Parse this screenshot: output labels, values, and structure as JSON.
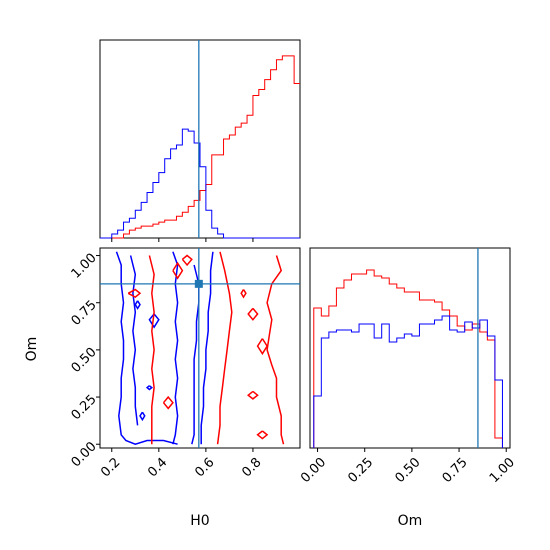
{
  "colors": {
    "series_a": "#ff0000",
    "series_b": "#0000ff",
    "truth": "#1f77b4"
  },
  "chart_data": [
    {
      "panel": "H0 marginal",
      "type": "histogram",
      "xlim": [
        0.15,
        1.0
      ],
      "truth": 0.57,
      "bins": [
        0.15,
        0.175,
        0.2,
        0.225,
        0.25,
        0.275,
        0.3,
        0.325,
        0.35,
        0.375,
        0.4,
        0.425,
        0.45,
        0.475,
        0.5,
        0.525,
        0.55,
        0.575,
        0.6,
        0.625,
        0.65,
        0.675,
        0.7,
        0.725,
        0.75,
        0.775,
        0.8,
        0.825,
        0.85,
        0.875,
        0.9,
        0.925,
        0.95,
        0.975,
        1.0
      ],
      "series": [
        {
          "color": "red",
          "values": [
            0,
            0,
            0,
            0,
            0.02,
            0.04,
            0.05,
            0.06,
            0.06,
            0.07,
            0.08,
            0.09,
            0.09,
            0.11,
            0.13,
            0.16,
            0.19,
            0.24,
            0.27,
            0.42,
            0.42,
            0.5,
            0.52,
            0.56,
            0.58,
            0.62,
            0.72,
            0.75,
            0.8,
            0.85,
            0.9,
            0.92,
            0.92,
            0.78
          ]
        },
        {
          "color": "blue",
          "values": [
            0,
            0,
            0.02,
            0.04,
            0.08,
            0.1,
            0.14,
            0.18,
            0.23,
            0.28,
            0.33,
            0.4,
            0.45,
            0.47,
            0.55,
            0.54,
            0.48,
            0.36,
            0.14,
            0.05,
            0.02,
            0,
            0,
            0,
            0,
            0,
            0,
            0,
            0,
            0,
            0,
            0,
            0,
            0
          ]
        }
      ]
    },
    {
      "panel": "H0 vs Om",
      "type": "contour",
      "xlabel": "H0",
      "ylabel": "Om",
      "xlim": [
        0.15,
        1.0
      ],
      "ylim": [
        -0.02,
        1.04
      ],
      "xticks": [
        "0.2",
        "0.4",
        "0.6",
        "0.8"
      ],
      "yticks": [
        "0.00",
        "0.25",
        "0.50",
        "0.75",
        "1.00"
      ],
      "truth": {
        "x": 0.57,
        "y": 0.85
      },
      "series": [
        {
          "color": "blue",
          "contours": [
            [
              [
                0.22,
                1.02
              ],
              [
                0.24,
                0.95
              ],
              [
                0.24,
                0.85
              ],
              [
                0.25,
                0.75
              ],
              [
                0.24,
                0.65
              ],
              [
                0.25,
                0.55
              ],
              [
                0.25,
                0.45
              ],
              [
                0.24,
                0.35
              ],
              [
                0.24,
                0.25
              ],
              [
                0.23,
                0.15
              ],
              [
                0.24,
                0.05
              ],
              [
                0.26,
                0.02
              ],
              [
                0.3,
                0.0
              ],
              [
                0.35,
                0.02
              ],
              [
                0.42,
                0.02
              ],
              [
                0.48,
                0.0
              ]
            ],
            [
              [
                0.28,
                1.0
              ],
              [
                0.3,
                0.9
              ],
              [
                0.29,
                0.8
              ],
              [
                0.3,
                0.7
              ],
              [
                0.29,
                0.6
              ],
              [
                0.3,
                0.5
              ],
              [
                0.29,
                0.4
              ],
              [
                0.3,
                0.3
              ],
              [
                0.3,
                0.2
              ],
              [
                0.31,
                0.1
              ]
            ],
            [
              [
                0.46,
                1.02
              ],
              [
                0.48,
                0.95
              ],
              [
                0.47,
                0.85
              ],
              [
                0.48,
                0.75
              ],
              [
                0.47,
                0.65
              ],
              [
                0.48,
                0.55
              ],
              [
                0.47,
                0.45
              ],
              [
                0.48,
                0.35
              ],
              [
                0.47,
                0.25
              ],
              [
                0.48,
                0.15
              ],
              [
                0.47,
                0.05
              ],
              [
                0.46,
                0.0
              ]
            ],
            [
              [
                0.55,
                0.95
              ],
              [
                0.57,
                0.85
              ],
              [
                0.57,
                0.75
              ],
              [
                0.56,
                0.65
              ],
              [
                0.56,
                0.55
              ],
              [
                0.55,
                0.45
              ],
              [
                0.55,
                0.35
              ],
              [
                0.55,
                0.25
              ],
              [
                0.55,
                0.15
              ],
              [
                0.55,
                0.05
              ],
              [
                0.54,
                0.0
              ]
            ],
            [
              [
                0.63,
                1.02
              ],
              [
                0.62,
                0.92
              ],
              [
                0.62,
                0.8
              ],
              [
                0.61,
                0.7
              ],
              [
                0.61,
                0.6
              ],
              [
                0.6,
                0.5
              ],
              [
                0.6,
                0.4
              ],
              [
                0.59,
                0.3
              ],
              [
                0.59,
                0.2
              ],
              [
                0.58,
                0.1
              ],
              [
                0.58,
                0.0
              ]
            ],
            [
              [
                0.38,
                0.69
              ],
              [
                0.4,
                0.66
              ],
              [
                0.38,
                0.62
              ],
              [
                0.36,
                0.66
              ],
              [
                0.38,
                0.69
              ]
            ],
            [
              [
                0.31,
                0.76
              ],
              [
                0.32,
                0.74
              ],
              [
                0.31,
                0.72
              ],
              [
                0.3,
                0.74
              ],
              [
                0.31,
                0.76
              ]
            ],
            [
              [
                0.36,
                0.31
              ],
              [
                0.37,
                0.3
              ],
              [
                0.36,
                0.29
              ],
              [
                0.35,
                0.3
              ],
              [
                0.36,
                0.31
              ]
            ],
            [
              [
                0.33,
                0.17
              ],
              [
                0.34,
                0.15
              ],
              [
                0.33,
                0.13
              ],
              [
                0.32,
                0.15
              ],
              [
                0.33,
                0.17
              ]
            ]
          ]
        },
        {
          "color": "red",
          "contours": [
            [
              [
                0.27,
                0.8
              ],
              [
                0.3,
                0.78
              ],
              [
                0.32,
                0.8
              ],
              [
                0.3,
                0.82
              ],
              [
                0.27,
                0.8
              ]
            ],
            [
              [
                0.36,
                1.0
              ],
              [
                0.38,
                0.9
              ],
              [
                0.37,
                0.8
              ],
              [
                0.38,
                0.7
              ],
              [
                0.37,
                0.6
              ],
              [
                0.38,
                0.5
              ],
              [
                0.37,
                0.4
              ],
              [
                0.38,
                0.3
              ],
              [
                0.37,
                0.2
              ],
              [
                0.37,
                0.1
              ],
              [
                0.37,
                0.0
              ]
            ],
            [
              [
                0.46,
                0.92
              ],
              [
                0.48,
                0.88
              ],
              [
                0.5,
                0.92
              ],
              [
                0.48,
                0.96
              ],
              [
                0.46,
                0.92
              ]
            ],
            [
              [
                0.5,
                0.98
              ],
              [
                0.52,
                0.95
              ],
              [
                0.54,
                0.98
              ],
              [
                0.52,
                1.0
              ],
              [
                0.5,
                0.98
              ]
            ],
            [
              [
                0.42,
                0.22
              ],
              [
                0.44,
                0.19
              ],
              [
                0.46,
                0.22
              ],
              [
                0.44,
                0.25
              ],
              [
                0.42,
                0.22
              ]
            ],
            [
              [
                0.66,
                1.02
              ],
              [
                0.68,
                0.92
              ],
              [
                0.7,
                0.8
              ],
              [
                0.71,
                0.7
              ],
              [
                0.7,
                0.6
              ],
              [
                0.69,
                0.5
              ],
              [
                0.68,
                0.4
              ],
              [
                0.67,
                0.3
              ],
              [
                0.66,
                0.2
              ],
              [
                0.66,
                0.1
              ],
              [
                0.65,
                0.0
              ]
            ],
            [
              [
                0.9,
                1.0
              ],
              [
                0.92,
                0.92
              ],
              [
                0.88,
                0.85
              ],
              [
                0.86,
                0.75
              ],
              [
                0.88,
                0.66
              ],
              [
                0.87,
                0.58
              ],
              [
                0.86,
                0.5
              ],
              [
                0.88,
                0.42
              ],
              [
                0.9,
                0.35
              ],
              [
                0.9,
                0.25
              ],
              [
                0.92,
                0.15
              ],
              [
                0.92,
                0.05
              ],
              [
                0.93,
                0.0
              ]
            ],
            [
              [
                0.76,
                0.82
              ],
              [
                0.77,
                0.8
              ],
              [
                0.76,
                0.78
              ],
              [
                0.75,
                0.8
              ],
              [
                0.76,
                0.82
              ]
            ],
            [
              [
                0.8,
                0.72
              ],
              [
                0.82,
                0.69
              ],
              [
                0.8,
                0.66
              ],
              [
                0.78,
                0.69
              ],
              [
                0.8,
                0.72
              ]
            ],
            [
              [
                0.84,
                0.56
              ],
              [
                0.86,
                0.52
              ],
              [
                0.84,
                0.48
              ],
              [
                0.82,
                0.52
              ],
              [
                0.84,
                0.56
              ]
            ],
            [
              [
                0.8,
                0.28
              ],
              [
                0.82,
                0.26
              ],
              [
                0.8,
                0.24
              ],
              [
                0.78,
                0.26
              ],
              [
                0.8,
                0.28
              ]
            ],
            [
              [
                0.84,
                0.07
              ],
              [
                0.86,
                0.05
              ],
              [
                0.84,
                0.03
              ],
              [
                0.82,
                0.05
              ],
              [
                0.84,
                0.07
              ]
            ]
          ]
        }
      ]
    },
    {
      "panel": "Om marginal",
      "type": "histogram",
      "xlabel": "Om",
      "xlim": [
        -0.04,
        1.02
      ],
      "xticks": [
        "0.00",
        "0.25",
        "0.50",
        "0.75",
        "1.00"
      ],
      "truth": 0.85,
      "bins": [
        -0.02,
        0.02,
        0.06,
        0.1,
        0.14,
        0.18,
        0.22,
        0.26,
        0.3,
        0.34,
        0.38,
        0.42,
        0.46,
        0.5,
        0.54,
        0.58,
        0.62,
        0.66,
        0.7,
        0.74,
        0.78,
        0.82,
        0.86,
        0.9,
        0.94,
        0.98
      ],
      "series": [
        {
          "color": "red",
          "values": [
            0.7,
            0.66,
            0.71,
            0.8,
            0.84,
            0.87,
            0.87,
            0.89,
            0.86,
            0.85,
            0.82,
            0.8,
            0.78,
            0.78,
            0.74,
            0.74,
            0.73,
            0.69,
            0.66,
            0.61,
            0.59,
            0.62,
            0.58,
            0.54,
            0.05
          ]
        },
        {
          "color": "blue",
          "values": [
            0.26,
            0.55,
            0.58,
            0.59,
            0.59,
            0.58,
            0.62,
            0.62,
            0.55,
            0.62,
            0.53,
            0.55,
            0.57,
            0.56,
            0.62,
            0.62,
            0.64,
            0.66,
            0.59,
            0.58,
            0.63,
            0.6,
            0.64,
            0.56,
            0.34
          ]
        }
      ]
    }
  ]
}
